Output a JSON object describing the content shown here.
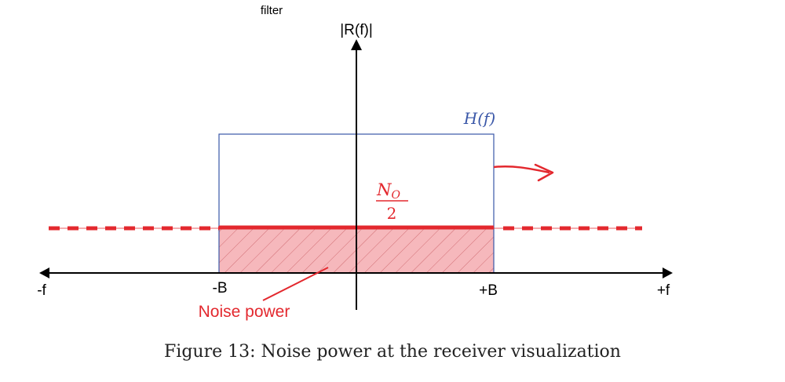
{
  "top_label": "filter",
  "y_axis_label": "|R(f)|",
  "x_axis": {
    "left_label": "-f",
    "right_label": "+f",
    "tick_left": "-B",
    "tick_right": "+B"
  },
  "filter_label": "H(f)",
  "noise_level": {
    "numerator": "N",
    "numerator_subscript": "O",
    "denominator": "2"
  },
  "noise_power_label": "Noise power",
  "caption": "Figure 13: Noise power at the receiver visualization",
  "colors": {
    "axis": "#000000",
    "filter": "#3a57a8",
    "noise": "#e3282e",
    "fill": "#f6b8bc",
    "hatch": "#c85a60"
  }
}
